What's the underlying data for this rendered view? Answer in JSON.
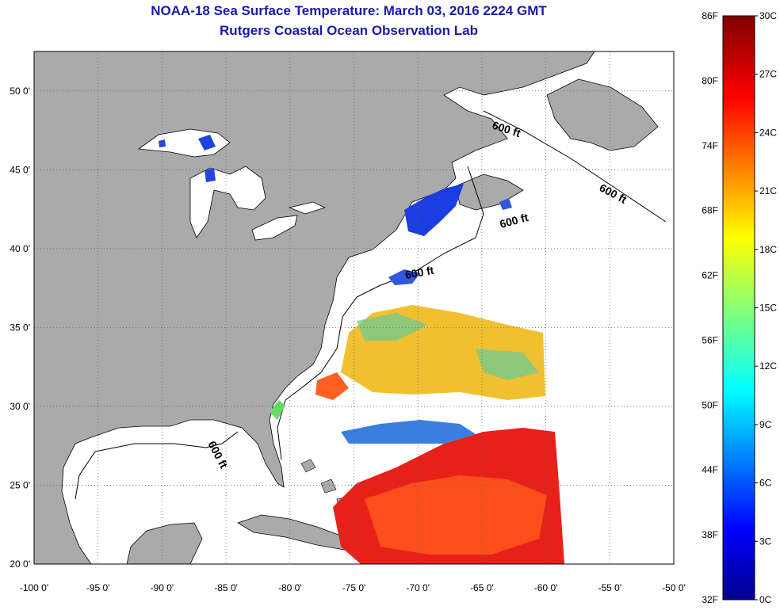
{
  "header": {
    "title": "NOAA-18 Sea Surface Temperature:  March 03, 2016 2224 GMT",
    "subtitle": "Rutgers Coastal Ocean Observation Lab"
  },
  "map": {
    "lon_range": [
      -100,
      -50
    ],
    "lat_range": [
      20,
      52.5
    ],
    "lon_ticks": [
      "-100 0'",
      "-95 0'",
      "-90 0'",
      "-85 0'",
      "-80 0'",
      "-75 0'",
      "-70 0'",
      "-65 0'",
      "-60 0'",
      "-55 0'",
      "-50 0'"
    ],
    "lat_ticks": [
      "20 0'",
      "25 0'",
      "30 0'",
      "35 0'",
      "40 0'",
      "45 0'",
      "50 0'"
    ],
    "contour_labels": [
      "600 ft",
      "600 ft",
      "600 ft",
      "600 ft",
      "600 ft"
    ],
    "grid": true,
    "colors": {
      "land": "#aaaaaa",
      "no_data": "#ffffff"
    }
  },
  "colorbar": {
    "fahrenheit": [
      "86F",
      "80F",
      "74F",
      "68F",
      "62F",
      "56F",
      "50F",
      "44F",
      "38F",
      "32F"
    ],
    "celsius": [
      "30C",
      "27C",
      "24C",
      "21C",
      "18C",
      "15C",
      "12C",
      "9C",
      "6C",
      "3C",
      "0C"
    ],
    "range_c": [
      0,
      30
    ],
    "colormap": "jet"
  }
}
